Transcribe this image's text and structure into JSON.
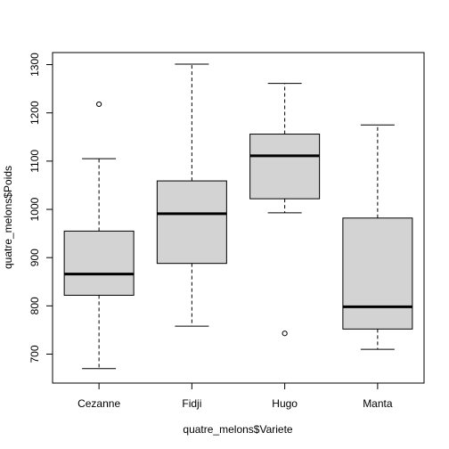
{
  "chart_data": {
    "type": "boxplot",
    "title": "",
    "xlabel": "quatre_melons$Variete",
    "ylabel": "quatre_melons$Poids",
    "ylim": [
      640,
      1325
    ],
    "yticks": [
      700,
      800,
      900,
      1000,
      1100,
      1200,
      1300
    ],
    "categories": [
      "Cezanne",
      "Fidji",
      "Hugo",
      "Manta"
    ],
    "boxes": [
      {
        "name": "Cezanne",
        "whisker_low": 670,
        "q1": 822,
        "median": 866,
        "q3": 955,
        "whisker_high": 1105,
        "outliers": [
          1218
        ]
      },
      {
        "name": "Fidji",
        "whisker_low": 758,
        "q1": 888,
        "median": 991,
        "q3": 1059,
        "whisker_high": 1301,
        "outliers": []
      },
      {
        "name": "Hugo",
        "whisker_low": 993,
        "q1": 1022,
        "median": 1111,
        "q3": 1156,
        "whisker_high": 1261,
        "outliers": [
          743
        ]
      },
      {
        "name": "Manta",
        "whisker_low": 710,
        "q1": 752,
        "median": 798,
        "q3": 982,
        "whisker_high": 1175,
        "outliers": []
      }
    ],
    "colors": {
      "box_fill": "#d3d3d3",
      "stroke": "#000000"
    },
    "grid": false,
    "legend": "none"
  }
}
